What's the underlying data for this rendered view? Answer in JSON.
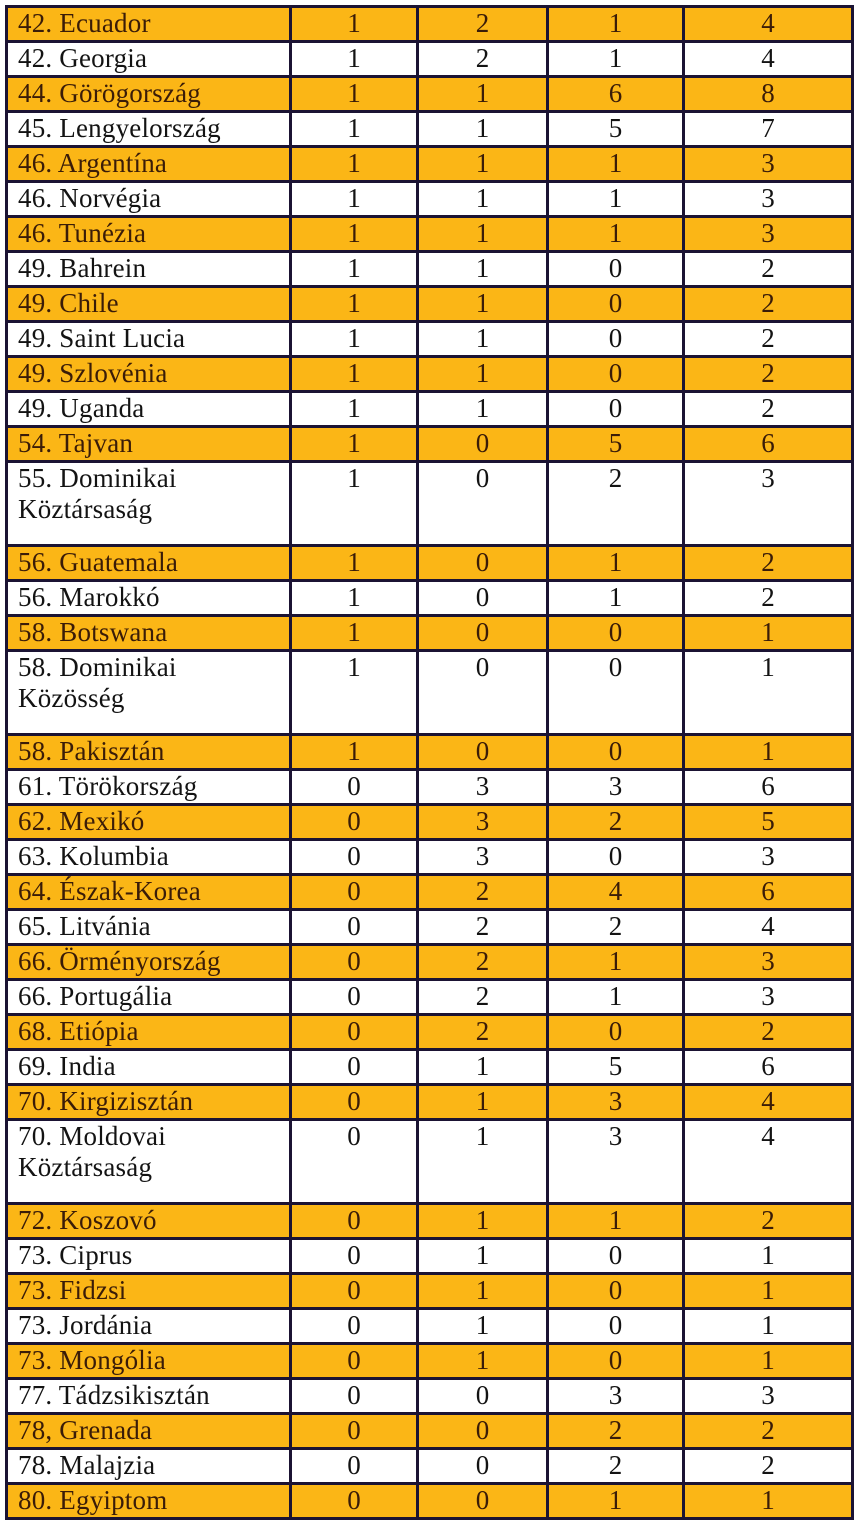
{
  "colors": {
    "row_highlight": "#fbb616",
    "row_plain": "#ffffff",
    "border": "#1b1333",
    "text_plain": "#131313",
    "text_highlight": "#3a1c08"
  },
  "table": {
    "rows": [
      {
        "name": "42. Ecuador",
        "values": [
          1,
          2,
          1,
          4
        ],
        "highlight": true
      },
      {
        "name": "42. Georgia",
        "values": [
          1,
          2,
          1,
          4
        ],
        "highlight": false
      },
      {
        "name": "44. Görögország",
        "values": [
          1,
          1,
          6,
          8
        ],
        "highlight": true
      },
      {
        "name": "45. Lengyelország",
        "values": [
          1,
          1,
          5,
          7
        ],
        "highlight": false
      },
      {
        "name": "46. Argentína",
        "values": [
          1,
          1,
          1,
          3
        ],
        "highlight": true
      },
      {
        "name": "46. Norvégia",
        "values": [
          1,
          1,
          1,
          3
        ],
        "highlight": false
      },
      {
        "name": "46. Tunézia",
        "values": [
          1,
          1,
          1,
          3
        ],
        "highlight": true
      },
      {
        "name": "49. Bahrein",
        "values": [
          1,
          1,
          0,
          2
        ],
        "highlight": false
      },
      {
        "name": "49. Chile",
        "values": [
          1,
          1,
          0,
          2
        ],
        "highlight": true
      },
      {
        "name": "49. Saint Lucia",
        "values": [
          1,
          1,
          0,
          2
        ],
        "highlight": false
      },
      {
        "name": "49. Szlovénia",
        "values": [
          1,
          1,
          0,
          2
        ],
        "highlight": true
      },
      {
        "name": "49. Uganda",
        "values": [
          1,
          1,
          0,
          2
        ],
        "highlight": false
      },
      {
        "name": "54. Tajvan",
        "values": [
          1,
          0,
          5,
          6
        ],
        "highlight": true
      },
      {
        "name": "55. Dominikai Köztársaság",
        "values": [
          1,
          0,
          2,
          3
        ],
        "highlight": false
      },
      {
        "name": "56. Guatemala",
        "values": [
          1,
          0,
          1,
          2
        ],
        "highlight": true
      },
      {
        "name": "56. Marokkó",
        "values": [
          1,
          0,
          1,
          2
        ],
        "highlight": false
      },
      {
        "name": "58. Botswana",
        "values": [
          1,
          0,
          0,
          1
        ],
        "highlight": true
      },
      {
        "name": "58. Dominikai Közösség",
        "values": [
          1,
          0,
          0,
          1
        ],
        "highlight": false
      },
      {
        "name": "58. Pakisztán",
        "values": [
          1,
          0,
          0,
          1
        ],
        "highlight": true
      },
      {
        "name": "61. Törökország",
        "values": [
          0,
          3,
          3,
          6
        ],
        "highlight": false
      },
      {
        "name": "62. Mexikó",
        "values": [
          0,
          3,
          2,
          5
        ],
        "highlight": true
      },
      {
        "name": "63. Kolumbia",
        "values": [
          0,
          3,
          0,
          3
        ],
        "highlight": false
      },
      {
        "name": "64. Észak-Korea",
        "values": [
          0,
          2,
          4,
          6
        ],
        "highlight": true
      },
      {
        "name": "65. Litvánia",
        "values": [
          0,
          2,
          2,
          4
        ],
        "highlight": false
      },
      {
        "name": "66. Örményország",
        "values": [
          0,
          2,
          1,
          3
        ],
        "highlight": true
      },
      {
        "name": "66. Portugália",
        "values": [
          0,
          2,
          1,
          3
        ],
        "highlight": false
      },
      {
        "name": "68. Etiópia",
        "values": [
          0,
          2,
          0,
          2
        ],
        "highlight": true
      },
      {
        "name": "69. India",
        "values": [
          0,
          1,
          5,
          6
        ],
        "highlight": false
      },
      {
        "name": "70. Kirgizisztán",
        "values": [
          0,
          1,
          3,
          4
        ],
        "highlight": true
      },
      {
        "name": "70. Moldovai Köztársaság",
        "values": [
          0,
          1,
          3,
          4
        ],
        "highlight": false
      },
      {
        "name": "72. Koszovó",
        "values": [
          0,
          1,
          1,
          2
        ],
        "highlight": true
      },
      {
        "name": "73. Ciprus",
        "values": [
          0,
          1,
          0,
          1
        ],
        "highlight": false
      },
      {
        "name": "73. Fidzsi",
        "values": [
          0,
          1,
          0,
          1
        ],
        "highlight": true
      },
      {
        "name": "73. Jordánia",
        "values": [
          0,
          1,
          0,
          1
        ],
        "highlight": false
      },
      {
        "name": "73. Mongólia",
        "values": [
          0,
          1,
          0,
          1
        ],
        "highlight": true
      },
      {
        "name": "77. Tádzsikisztán",
        "values": [
          0,
          0,
          3,
          3
        ],
        "highlight": false
      },
      {
        "name": "78, Grenada",
        "values": [
          0,
          0,
          2,
          2
        ],
        "highlight": true
      },
      {
        "name": "78. Malajzia",
        "values": [
          0,
          0,
          2,
          2
        ],
        "highlight": false
      },
      {
        "name": "80. Egyiptom",
        "values": [
          0,
          0,
          1,
          1
        ],
        "highlight": true
      }
    ]
  }
}
